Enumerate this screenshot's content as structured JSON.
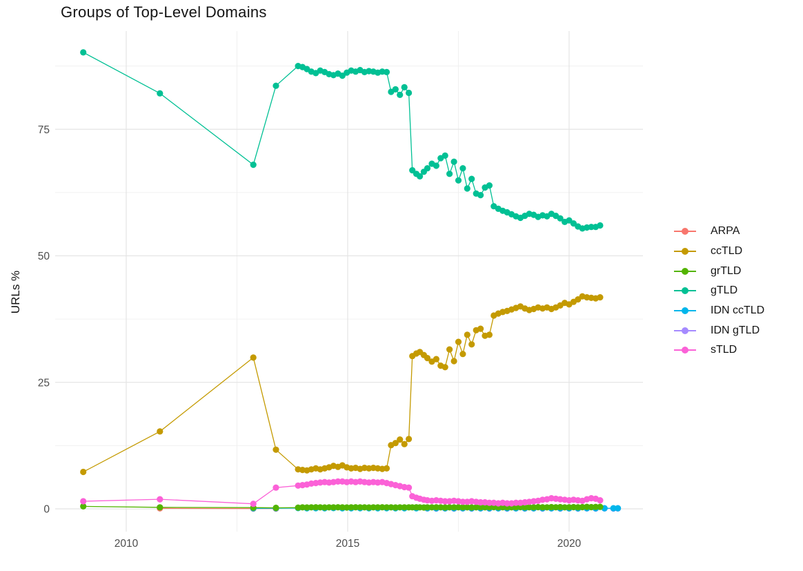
{
  "chart_data": {
    "type": "line",
    "title": "Groups of Top-Level Domains",
    "xlabel": "",
    "ylabel": "URLs %",
    "grid": "on",
    "legend_position": "right",
    "xlim": [
      2008.396,
      2021.667
    ],
    "ylim": [
      -4.5,
      94.41
    ],
    "x_ticks": [
      2010,
      2015,
      2020
    ],
    "x_tick_labels": [
      "2010",
      "2015",
      "2020"
    ],
    "y_ticks": [
      0,
      25,
      50,
      75
    ],
    "y_tick_labels": [
      "0",
      "25",
      "50",
      "75"
    ],
    "x_minor_gridlines": [
      2012.5,
      2017.5
    ],
    "y_minor_gridlines": [
      12.5,
      37.5,
      62.5,
      87.5
    ],
    "major_grid_color": "#e4e4e4",
    "minor_grid_color": "#f0f0f0",
    "axis_text_color": "#4d4d4d",
    "draw_order": [
      0,
      5,
      4,
      2,
      1,
      3,
      6
    ],
    "x_main": [
      2009.03,
      2010.76,
      2012.87,
      2013.38,
      2013.88,
      2013.98,
      2014.08,
      2014.18,
      2014.28,
      2014.38,
      2014.48,
      2014.58,
      2014.68,
      2014.78,
      2014.88,
      2014.98,
      2015.08,
      2015.18,
      2015.28,
      2015.38,
      2015.48,
      2015.58,
      2015.68,
      2015.78,
      2015.88,
      2015.98,
      2016.08,
      2016.18,
      2016.28,
      2016.38,
      2016.46,
      2016.55,
      2016.63,
      2016.72,
      2016.8,
      2016.9,
      2017.0,
      2017.1,
      2017.2,
      2017.3,
      2017.4,
      2017.5,
      2017.6,
      2017.7,
      2017.8,
      2017.9,
      2018.0,
      2018.1,
      2018.2,
      2018.3,
      2018.4,
      2018.5,
      2018.6,
      2018.7,
      2018.8,
      2018.9,
      2019.0,
      2019.1,
      2019.2,
      2019.3,
      2019.4,
      2019.5,
      2019.6,
      2019.7,
      2019.8,
      2019.9,
      2020.0,
      2020.1,
      2020.2,
      2020.3,
      2020.4,
      2020.5,
      2020.6,
      2020.7,
      2020.8,
      2020.9,
      2021.0,
      2021.1
    ],
    "series": [
      {
        "name": "ARPA",
        "color": "#F8766D",
        "x": [
          2010.76,
          2012.87,
          2013.38
        ],
        "y": [
          0.1,
          0.06,
          0.05
        ]
      },
      {
        "name": "ccTLD",
        "color": "#C49A00",
        "y": [
          7.3,
          15.3,
          29.9,
          11.7,
          7.8,
          7.7,
          7.6,
          7.8,
          8.0,
          7.8,
          8.0,
          8.2,
          8.5,
          8.3,
          8.6,
          8.2,
          8.0,
          8.1,
          7.9,
          8.1,
          8.0,
          8.1,
          8.0,
          7.9,
          8.0,
          12.6,
          13.0,
          13.7,
          12.8,
          13.8,
          30.2,
          30.7,
          31.0,
          30.4,
          29.8,
          29.1,
          29.6,
          28.3,
          28.0,
          31.5,
          29.2,
          33.0,
          30.6,
          34.4,
          32.5,
          35.3,
          35.6,
          34.2,
          34.4,
          38.2,
          38.6,
          38.9,
          39.1,
          39.4,
          39.7,
          40.0,
          39.6,
          39.3,
          39.5,
          39.8,
          39.6,
          39.8,
          39.5,
          39.8,
          40.2,
          40.7,
          40.4,
          40.9,
          41.4,
          42.0,
          41.8,
          41.7,
          41.6,
          41.8
        ]
      },
      {
        "name": "grTLD",
        "color": "#53B400",
        "y": [
          0.5,
          0.3,
          0.25,
          0.2,
          0.25,
          0.3,
          0.28,
          0.3,
          0.32,
          0.3,
          0.28,
          0.3,
          0.3,
          0.32,
          0.3,
          0.28,
          0.3,
          0.32,
          0.3,
          0.3,
          0.28,
          0.3,
          0.3,
          0.32,
          0.3,
          0.3,
          0.28,
          0.3,
          0.3,
          0.3,
          0.3,
          0.32,
          0.3,
          0.28,
          0.3,
          0.3,
          0.32,
          0.3,
          0.28,
          0.3,
          0.3,
          0.32,
          0.3,
          0.3,
          0.28,
          0.3,
          0.32,
          0.3,
          0.3,
          0.35,
          0.3,
          0.32,
          0.3,
          0.3,
          0.32,
          0.35,
          0.3,
          0.32,
          0.3,
          0.35,
          0.32,
          0.3,
          0.35,
          0.32,
          0.35,
          0.3,
          0.32,
          0.35,
          0.32,
          0.35,
          0.4,
          0.35,
          0.38,
          0.4
        ]
      },
      {
        "name": "gTLD",
        "color": "#00C094",
        "y": [
          90.2,
          82.1,
          68.0,
          83.6,
          87.5,
          87.3,
          86.9,
          86.4,
          86.1,
          86.6,
          86.3,
          85.9,
          85.7,
          86.0,
          85.6,
          86.2,
          86.6,
          86.4,
          86.7,
          86.3,
          86.5,
          86.4,
          86.2,
          86.4,
          86.3,
          82.4,
          82.9,
          81.8,
          83.3,
          82.2,
          66.9,
          66.2,
          65.7,
          66.6,
          67.3,
          68.2,
          67.8,
          69.3,
          69.8,
          66.2,
          68.6,
          64.9,
          67.3,
          63.3,
          65.2,
          62.3,
          62.0,
          63.5,
          63.9,
          59.8,
          59.3,
          58.9,
          58.6,
          58.2,
          57.8,
          57.5,
          57.9,
          58.3,
          58.1,
          57.7,
          58.0,
          57.8,
          58.3,
          57.9,
          57.4,
          56.7,
          57.0,
          56.4,
          55.8,
          55.4,
          55.6,
          55.7,
          55.7,
          56.0
        ]
      },
      {
        "name": "IDN ccTLD",
        "color": "#00B6EB",
        "x": [
          2012.87,
          2013.38,
          2013.88,
          2014.08,
          2014.28,
          2014.48,
          2014.68,
          2014.88,
          2015.08,
          2015.28,
          2015.48,
          2015.68,
          2015.88,
          2016.08,
          2016.28,
          2016.55,
          2016.8,
          2017.0,
          2017.2,
          2017.4,
          2017.6,
          2017.8,
          2018.0,
          2018.2,
          2018.4,
          2018.6,
          2018.8,
          2019.0,
          2019.2,
          2019.4,
          2019.6,
          2019.8,
          2020.0,
          2020.2,
          2020.4,
          2020.6,
          2020.8,
          2021.0,
          2021.1
        ],
        "y": [
          0.1,
          0.12,
          0.15,
          0.13,
          0.14,
          0.12,
          0.15,
          0.13,
          0.12,
          0.14,
          0.13,
          0.12,
          0.14,
          0.13,
          0.12,
          0.13,
          0.14,
          0.12,
          0.13,
          0.12,
          0.14,
          0.13,
          0.12,
          0.13,
          0.12,
          0.14,
          0.13,
          0.12,
          0.13,
          0.14,
          0.12,
          0.13,
          0.12,
          0.13,
          0.14,
          0.12,
          0.13,
          0.12,
          0.13
        ]
      },
      {
        "name": "IDN gTLD",
        "color": "#A58AFF",
        "x": [
          2016.8,
          2017.0,
          2017.2,
          2017.4,
          2017.6,
          2017.8,
          2018.0,
          2018.2,
          2018.4,
          2018.6,
          2018.8,
          2019.0,
          2019.2,
          2019.4,
          2019.6,
          2019.8,
          2020.0,
          2020.2,
          2020.4,
          2020.6,
          2020.8,
          2021.0,
          2021.1
        ],
        "y": [
          0.08,
          0.07,
          0.08,
          0.07,
          0.08,
          0.07,
          0.08,
          0.07,
          0.08,
          0.07,
          0.08,
          0.07,
          0.08,
          0.07,
          0.08,
          0.07,
          0.08,
          0.07,
          0.08,
          0.07,
          0.08,
          0.07,
          0.08
        ]
      },
      {
        "name": "sTLD",
        "color": "#FB61D7",
        "y": [
          1.5,
          1.9,
          1.0,
          4.2,
          4.6,
          4.7,
          4.8,
          5.0,
          5.1,
          5.2,
          5.3,
          5.2,
          5.3,
          5.4,
          5.4,
          5.3,
          5.4,
          5.3,
          5.4,
          5.3,
          5.2,
          5.3,
          5.2,
          5.3,
          5.1,
          4.9,
          4.7,
          4.5,
          4.3,
          4.2,
          2.5,
          2.2,
          2.0,
          1.8,
          1.7,
          1.6,
          1.7,
          1.6,
          1.5,
          1.5,
          1.6,
          1.5,
          1.4,
          1.4,
          1.5,
          1.4,
          1.3,
          1.3,
          1.2,
          1.2,
          1.1,
          1.2,
          1.1,
          1.1,
          1.2,
          1.2,
          1.3,
          1.4,
          1.5,
          1.6,
          1.8,
          1.9,
          2.1,
          2.0,
          1.9,
          1.8,
          1.7,
          1.8,
          1.7,
          1.6,
          1.9,
          2.1,
          2.0,
          1.7
        ]
      }
    ]
  }
}
